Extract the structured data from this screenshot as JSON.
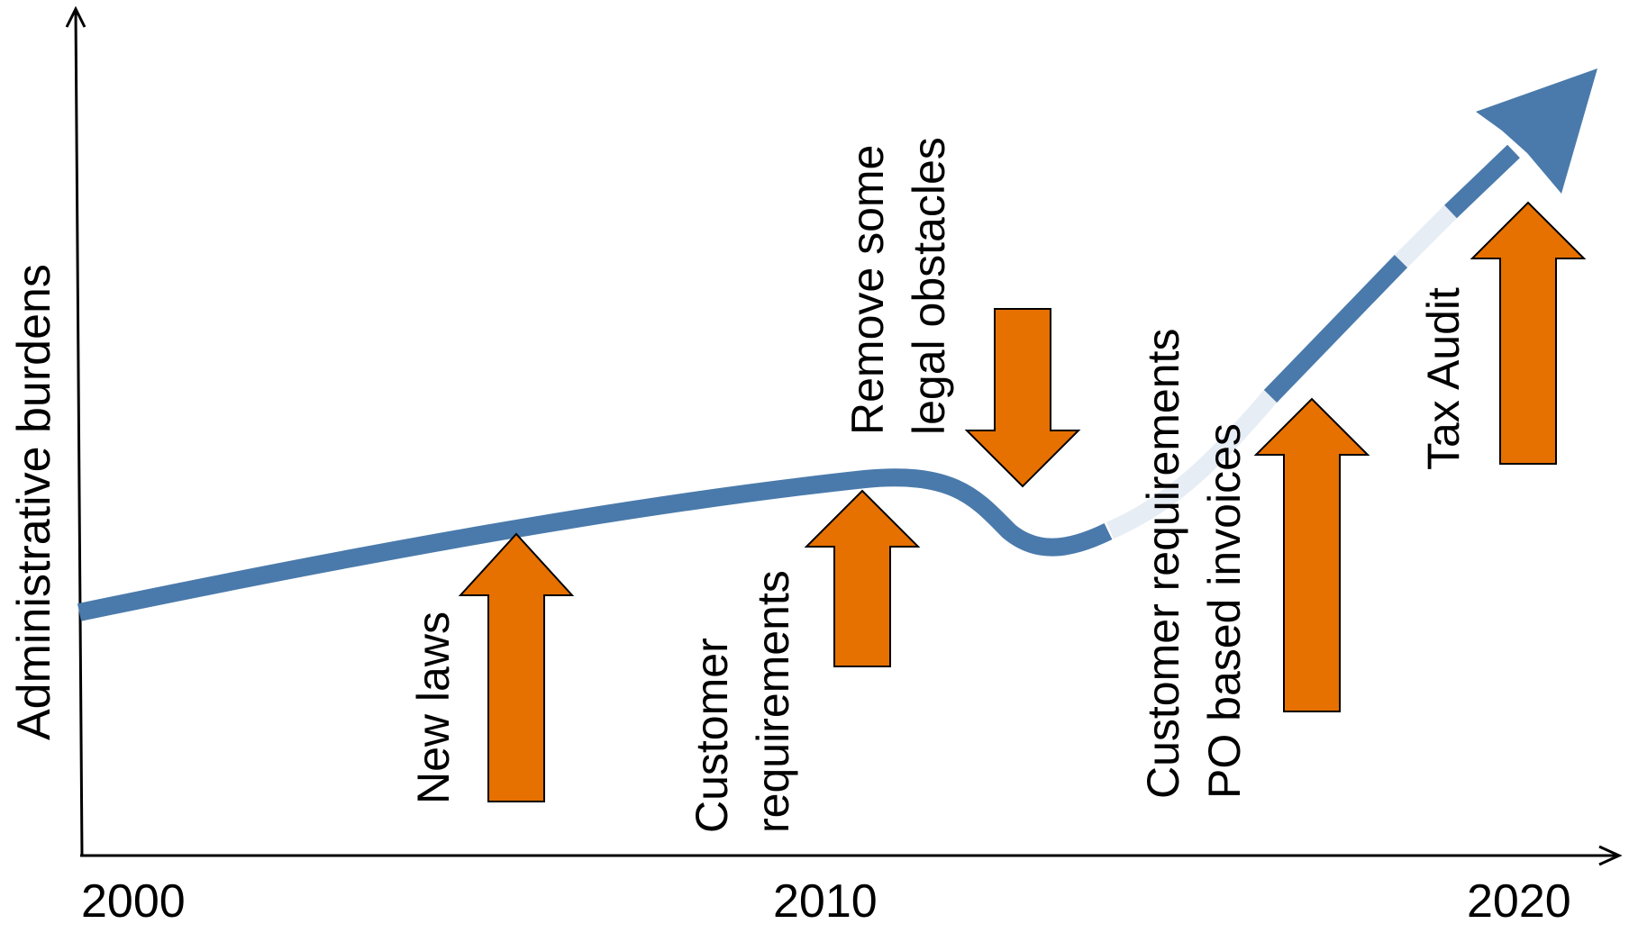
{
  "axes": {
    "y_label": "Administrative burdens",
    "x_ticks": [
      "2000",
      "2010",
      "2020"
    ]
  },
  "annotations": [
    {
      "id": "new-laws",
      "text": "New laws",
      "direction": "up"
    },
    {
      "id": "customer-requirements",
      "text": "Customer\nrequirements",
      "direction": "up"
    },
    {
      "id": "remove-obstacles",
      "text": "Remove some\nlegal obstacles",
      "direction": "down"
    },
    {
      "id": "customer-po",
      "text": "Customer requirements\nPO based invoices",
      "direction": "up"
    },
    {
      "id": "tax-audit",
      "text": "Tax Audit",
      "direction": "up"
    }
  ],
  "colors": {
    "trend": "#4a7aab",
    "trend_faded": "#e6edf4",
    "arrow_fill": "#e67000",
    "arrow_stroke": "#000000",
    "axis": "#000000"
  }
}
